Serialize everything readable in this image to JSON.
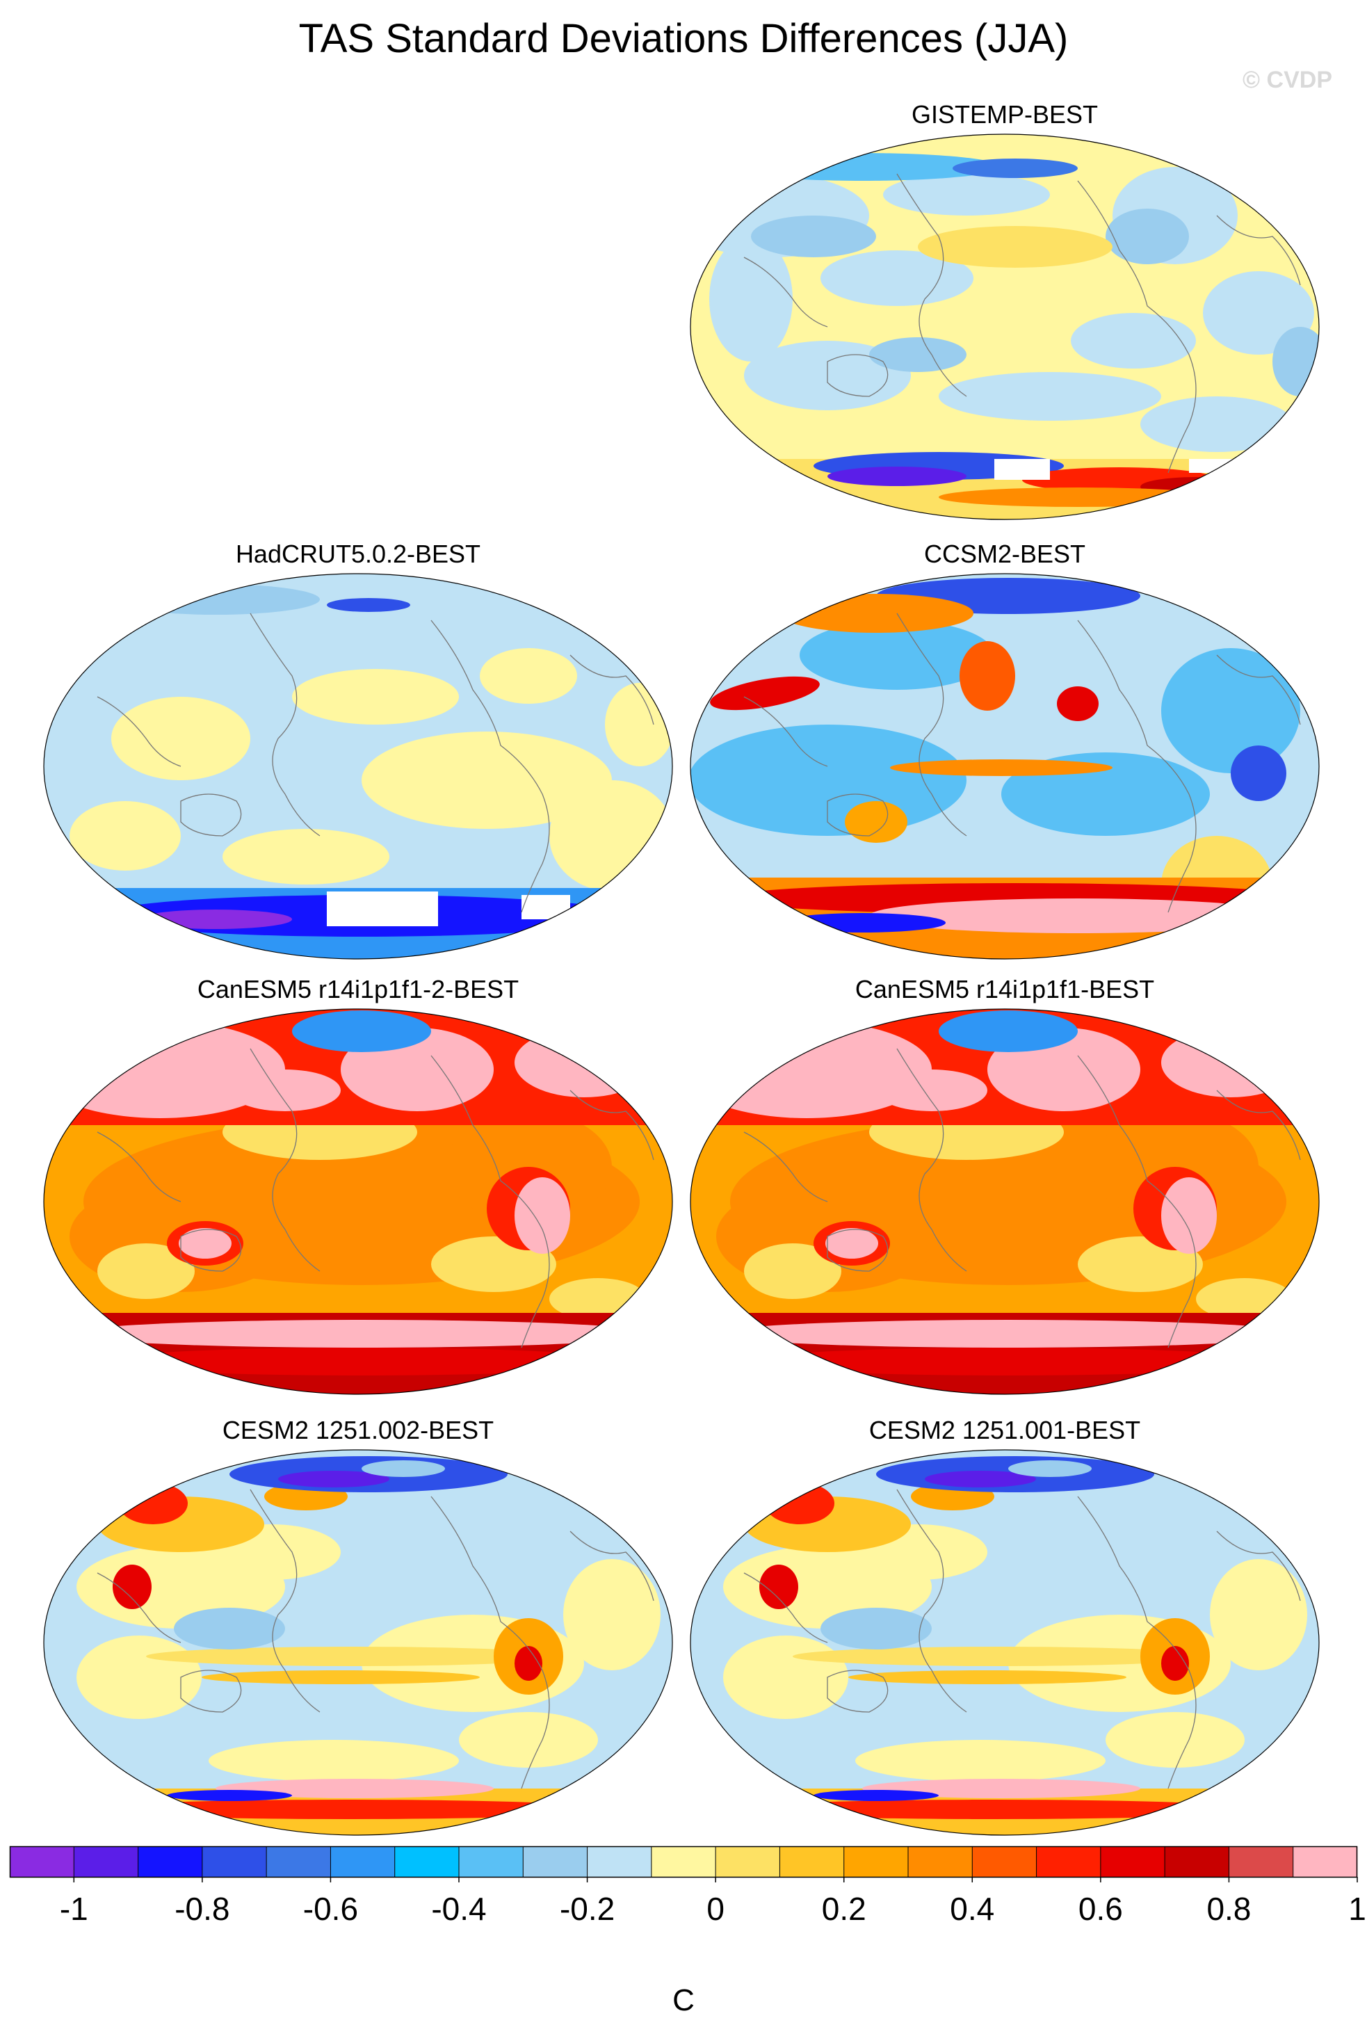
{
  "title": "TAS Standard Deviations Differences (JJA)",
  "watermark": "© CVDP",
  "panels": [
    {
      "label": "GISTEMP-BEST",
      "pattern": "gistemp"
    },
    {
      "label": "HadCRUT5.0.2-BEST",
      "pattern": "hadcrut"
    },
    {
      "label": "CCSM2-BEST",
      "pattern": "ccsm2"
    },
    {
      "label": "CanESM5 r14i1p1f1-2-BEST",
      "pattern": "canesm"
    },
    {
      "label": "CanESM5 r14i1p1f1-BEST",
      "pattern": "canesm"
    },
    {
      "label": "CESM2 1251.002-BEST",
      "pattern": "cesm2"
    },
    {
      "label": "CESM2 1251.001-BEST",
      "pattern": "cesm2"
    }
  ],
  "colorbar": {
    "unit": "C",
    "tick_labels": [
      "-1",
      "-0.8",
      "-0.6",
      "-0.4",
      "-0.2",
      "0",
      "0.2",
      "0.4",
      "0.6",
      "0.8",
      "1"
    ],
    "colors": [
      "#8a2be2",
      "#5b1ee8",
      "#1414ff",
      "#2e50e8",
      "#3c78e6",
      "#2f96f5",
      "#00c0ff",
      "#5ac0f5",
      "#9acdee",
      "#bfe2f5",
      "#fff7a0",
      "#fde164",
      "#ffc526",
      "#ffa500",
      "#ff8c00",
      "#ff5a00",
      "#ff2000",
      "#e60000",
      "#c80000",
      "#dc4a4a",
      "#ffb6c1"
    ]
  }
}
